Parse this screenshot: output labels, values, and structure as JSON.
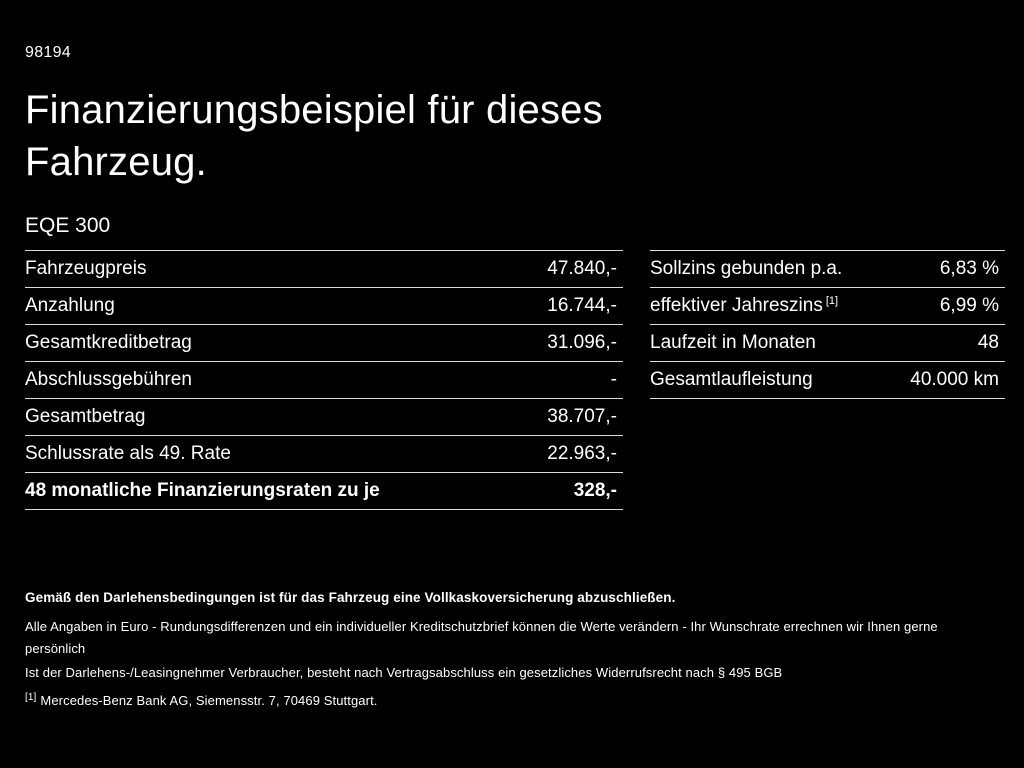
{
  "page": {
    "id_number": "98194",
    "title_line1": "Finanzierungsbeispiel für dieses",
    "title_line2": "Fahrzeug.",
    "model": "EQE 300"
  },
  "left_table": {
    "rows": [
      {
        "label": "Fahrzeugpreis",
        "value": "47.840,-"
      },
      {
        "label": "Anzahlung",
        "value": "16.744,-"
      },
      {
        "label": "Gesamtkreditbetrag",
        "value": "31.096,-"
      },
      {
        "label": "Abschlussgebühren",
        "value": "-"
      },
      {
        "label": "Gesamtbetrag",
        "value": "38.707,-"
      },
      {
        "label": "Schlussrate als 49. Rate",
        "value": "22.963,-"
      },
      {
        "label": "48 monatliche Finanzierungsraten zu je",
        "value": "328,-"
      }
    ]
  },
  "right_table": {
    "rows": [
      {
        "label": "Sollzins gebunden p.a.",
        "sup": "",
        "value": "6,83 %"
      },
      {
        "label": "effektiver Jahreszins",
        "sup": "[1]",
        "value": "6,99 %"
      },
      {
        "label": "Laufzeit in Monaten",
        "sup": "",
        "value": "48"
      },
      {
        "label": "Gesamtlaufleistung",
        "sup": "",
        "value": "40.000 km"
      }
    ]
  },
  "footer": {
    "bold_note": "Gemäß den Darlehensbedingungen ist für das Fahrzeug eine Vollkaskoversicherung abzuschließen.",
    "note1": "Alle Angaben in Euro - Rundungsdifferenzen und ein individueller Kreditschutzbrief können die Werte verändern - Ihr Wunschrate errechnen wir Ihnen gerne persönlich",
    "note2": "Ist der Darlehens-/Leasingnehmer Verbraucher, besteht nach Vertragsabschluss ein gesetzliches Widerrufsrecht nach § 495 BGB",
    "footnote_marker": "[1]",
    "footnote_text": "Mercedes-Benz Bank AG, Siemensstr. 7, 70469 Stuttgart."
  },
  "colors": {
    "background": "#000000",
    "text": "#ffffff",
    "divider": "#dcdcdc"
  }
}
